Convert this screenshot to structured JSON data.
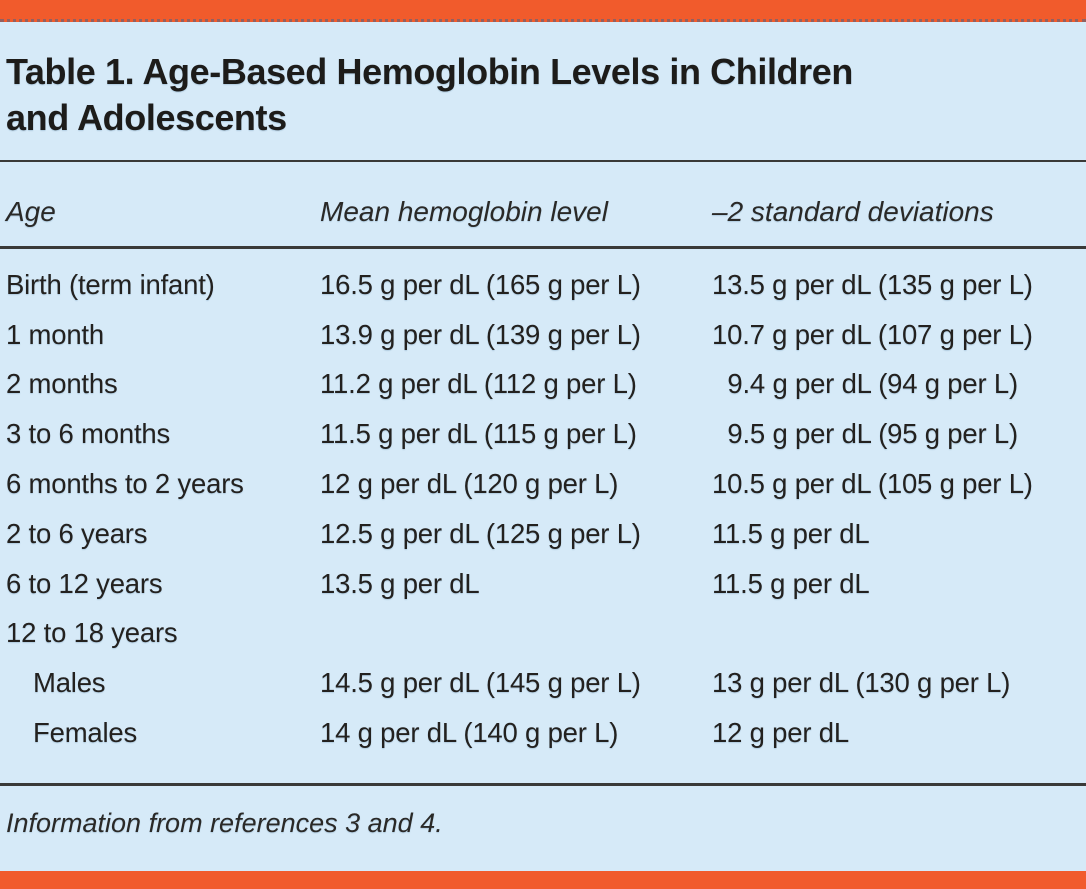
{
  "colors": {
    "accent_orange": "#f15b2c",
    "table_background": "#d6eaf8",
    "text": "#23211f",
    "rule": "#3a3a38"
  },
  "table": {
    "title_lines": [
      "Table 1. Age-Based Hemoglobin Levels in Children",
      "and Adolescents"
    ],
    "columns": [
      "Age",
      "Mean hemoglobin level",
      "–2 standard deviations"
    ],
    "rows": [
      {
        "age": "Birth (term infant)",
        "mean": "16.5 g per dL (165 g per L)",
        "sd": "13.5 g per dL (135 g per L)",
        "indent": false,
        "sd_pad": false
      },
      {
        "age": "1 month",
        "mean": "13.9 g per dL (139 g per L)",
        "sd": "10.7 g per dL (107 g per L)",
        "indent": false,
        "sd_pad": false
      },
      {
        "age": "2 months",
        "mean": "11.2 g per dL (112 g per L)",
        "sd": "9.4 g per dL (94 g per L)",
        "indent": false,
        "sd_pad": true
      },
      {
        "age": "3 to 6 months",
        "mean": "11.5 g per dL (115 g per L)",
        "sd": "9.5 g per dL (95 g per L)",
        "indent": false,
        "sd_pad": true
      },
      {
        "age": "6 months to 2 years",
        "mean": "12 g per dL (120 g per L)",
        "sd": "10.5 g per dL (105 g per L)",
        "indent": false,
        "sd_pad": false
      },
      {
        "age": "2 to 6 years",
        "mean": "12.5 g per dL (125 g per L)",
        "sd": "11.5 g per dL",
        "indent": false,
        "sd_pad": false
      },
      {
        "age": "6 to 12 years",
        "mean": "13.5 g per dL",
        "sd": "11.5 g per dL",
        "indent": false,
        "sd_pad": false
      },
      {
        "age": "12 to 18 years",
        "mean": "",
        "sd": "",
        "indent": false,
        "sd_pad": false
      },
      {
        "age": "Males",
        "mean": "14.5 g per dL (145 g per L)",
        "sd": "13 g per dL (130 g per L)",
        "indent": true,
        "sd_pad": false
      },
      {
        "age": "Females",
        "mean": "14 g per dL (140 g per L)",
        "sd": "12 g per dL",
        "indent": true,
        "sd_pad": false
      }
    ],
    "footnote": "Information from references 3 and 4."
  }
}
